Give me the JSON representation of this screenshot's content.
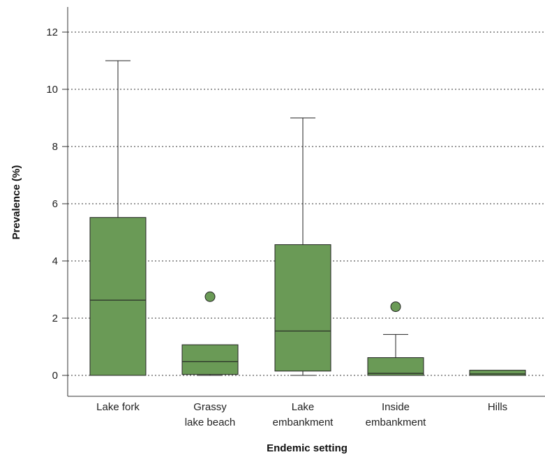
{
  "chart_data": {
    "type": "box",
    "title": "",
    "xlabel": "Endemic setting",
    "ylabel": "Prevalence (%)",
    "ylim": [
      0,
      12.8
    ],
    "yticks": [
      0,
      2,
      4,
      6,
      8,
      10,
      12
    ],
    "grid": "horizontal-dotted",
    "box_color": "#6a9a56",
    "box_edge_color": "#222222",
    "categories": [
      {
        "label_lines": [
          "Lake fork"
        ],
        "min": 0,
        "q1": 0,
        "median": 2.63,
        "q3": 5.52,
        "max": 11.0,
        "outliers": []
      },
      {
        "label_lines": [
          "Grassy",
          "lake beach"
        ],
        "min": 0,
        "q1": 0.03,
        "median": 0.48,
        "q3": 1.07,
        "max": 1.07,
        "outliers": [
          2.75
        ]
      },
      {
        "label_lines": [
          "Lake",
          "embankment"
        ],
        "min": 0,
        "q1": 0.15,
        "median": 1.55,
        "q3": 4.57,
        "max": 9.0,
        "outliers": []
      },
      {
        "label_lines": [
          "Inside",
          "embankment"
        ],
        "min": 0,
        "q1": 0,
        "median": 0.07,
        "q3": 0.62,
        "max": 1.43,
        "outliers": [
          2.4
        ]
      },
      {
        "label_lines": [
          "Hills"
        ],
        "min": 0,
        "q1": 0,
        "median": 0.05,
        "q3": 0.18,
        "max": 0.18,
        "outliers": []
      }
    ]
  }
}
